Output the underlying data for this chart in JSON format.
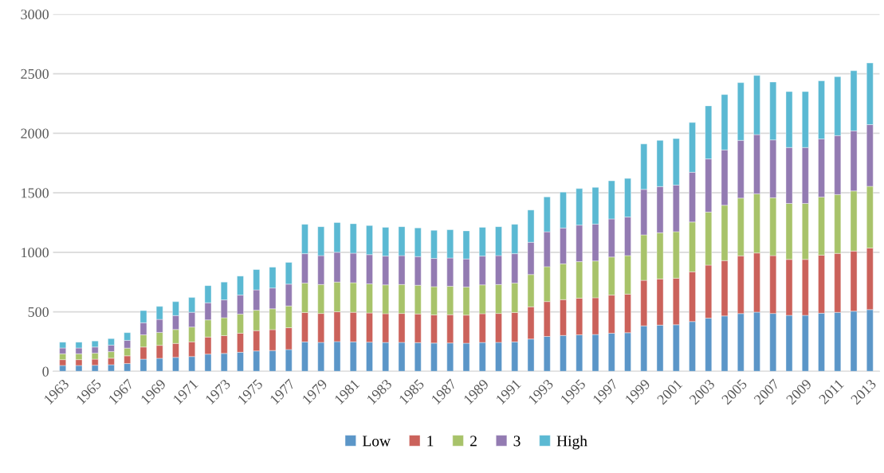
{
  "chart_data": {
    "type": "bar",
    "stacked": true,
    "categories": [
      "1963",
      null,
      "1965",
      null,
      "1967",
      null,
      "1969",
      null,
      "1971",
      null,
      "1973",
      null,
      "1975",
      null,
      "1977",
      null,
      "1979",
      null,
      "1981",
      null,
      "1983",
      null,
      "1985",
      null,
      "1987",
      null,
      "1989",
      null,
      "1991",
      null,
      "1993",
      null,
      "1995",
      null,
      "1997",
      null,
      "1999",
      null,
      "2001",
      null,
      "2003",
      null,
      "2005",
      null,
      "2007",
      null,
      "2009",
      null,
      "2011",
      null,
      "2013"
    ],
    "series": [
      {
        "name": "Low",
        "color": "#5b96c8",
        "values": [
          49,
          49,
          51,
          55,
          65,
          102,
          109,
          117,
          124,
          144,
          150,
          160,
          171,
          175,
          183,
          247,
          243,
          250,
          248,
          245,
          242,
          243,
          241,
          237,
          238,
          236,
          242,
          243,
          247,
          271,
          293,
          301,
          307,
          309,
          320,
          324,
          382,
          388,
          391,
          418,
          446,
          465,
          485,
          497,
          486,
          470,
          470,
          488,
          495,
          505,
          518
        ]
      },
      {
        "name": "1",
        "color": "#cb625b",
        "values": [
          49,
          49,
          51,
          55,
          65,
          102,
          109,
          117,
          124,
          144,
          150,
          160,
          171,
          175,
          183,
          247,
          243,
          250,
          248,
          245,
          242,
          243,
          241,
          237,
          238,
          236,
          242,
          243,
          247,
          271,
          293,
          301,
          307,
          309,
          320,
          324,
          382,
          388,
          391,
          418,
          446,
          465,
          485,
          497,
          486,
          470,
          470,
          488,
          495,
          505,
          518
        ]
      },
      {
        "name": "2",
        "color": "#a8c36a",
        "values": [
          49,
          49,
          51,
          55,
          65,
          102,
          109,
          117,
          124,
          144,
          150,
          160,
          171,
          175,
          183,
          247,
          243,
          250,
          248,
          245,
          242,
          243,
          241,
          237,
          238,
          236,
          242,
          243,
          247,
          271,
          293,
          301,
          307,
          309,
          320,
          324,
          382,
          388,
          391,
          418,
          446,
          465,
          485,
          497,
          486,
          470,
          470,
          488,
          495,
          505,
          518
        ]
      },
      {
        "name": "3",
        "color": "#937bb2",
        "values": [
          49,
          49,
          51,
          55,
          65,
          102,
          109,
          117,
          124,
          144,
          150,
          160,
          171,
          175,
          183,
          247,
          243,
          250,
          248,
          245,
          242,
          243,
          241,
          237,
          238,
          236,
          242,
          243,
          247,
          271,
          293,
          301,
          307,
          309,
          320,
          324,
          382,
          388,
          391,
          418,
          446,
          465,
          485,
          497,
          486,
          470,
          470,
          488,
          495,
          505,
          518
        ]
      },
      {
        "name": "High",
        "color": "#5bb9d3",
        "values": [
          49,
          49,
          51,
          55,
          65,
          102,
          109,
          117,
          124,
          144,
          150,
          160,
          171,
          175,
          183,
          247,
          243,
          250,
          248,
          245,
          242,
          243,
          241,
          237,
          238,
          236,
          242,
          243,
          247,
          271,
          293,
          301,
          307,
          309,
          320,
          324,
          382,
          388,
          391,
          418,
          446,
          465,
          485,
          497,
          486,
          470,
          470,
          488,
          495,
          505,
          518
        ]
      }
    ],
    "ylim": [
      0,
      3000
    ],
    "yticks": [
      0,
      500,
      1000,
      1500,
      2000,
      2500,
      3000
    ],
    "grid": "y",
    "legend": "bottom"
  }
}
